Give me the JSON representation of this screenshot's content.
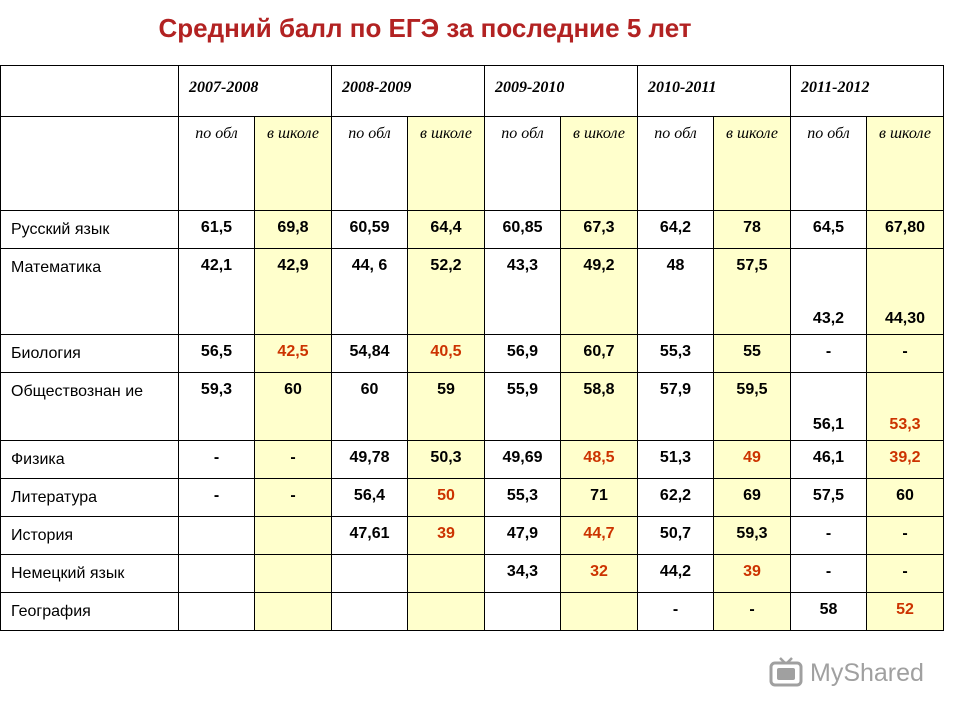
{
  "title": "Средний балл по ЕГЭ за последние 5 лет",
  "years": [
    "2007-2008",
    "2008-2009",
    "2009-2010",
    "2010-2011",
    "2011-2012"
  ],
  "sub_headers": [
    "по обл",
    "в школе"
  ],
  "rows": [
    {
      "subject": "Русский язык",
      "values": [
        "61,5",
        "69,8",
        "60,59",
        "64,4",
        "60,85",
        "67,3",
        "64,2",
        "78",
        "64,5",
        "67,80"
      ]
    },
    {
      "subject": "Математика",
      "values": [
        "42,1",
        "42,9",
        "44, 6",
        "52,2",
        "43,3",
        "49,2",
        "48",
        "57,5",
        "43,2",
        "44,30"
      ]
    },
    {
      "subject": "Биология",
      "values": [
        "56,5",
        "42,5",
        "54,84",
        "40,5",
        "56,9",
        "60,7",
        "55,3",
        "55",
        "-",
        "-"
      ]
    },
    {
      "subject": "Обществознан ие",
      "values": [
        "59,3",
        "60",
        "60",
        "59",
        "55,9",
        "58,8",
        "57,9",
        "59,5",
        "56,1",
        "53,3"
      ]
    },
    {
      "subject": "Физика",
      "values": [
        "-",
        "-",
        "49,78",
        "50,3",
        "49,69",
        "48,5",
        "51,3",
        "49",
        "46,1",
        "39,2"
      ]
    },
    {
      "subject": "Литература",
      "values": [
        "-",
        "-",
        "56,4",
        "50",
        "55,3",
        "71",
        "62,2",
        "69",
        "57,5",
        "60"
      ]
    },
    {
      "subject": "История",
      "values": [
        "",
        "",
        "47,61",
        "39",
        "47,9",
        "44,7",
        "50,7",
        "59,3",
        "-",
        "-"
      ]
    },
    {
      "subject": "Немецкий язык",
      "values": [
        "",
        "",
        "",
        "",
        "34,3",
        "32",
        "44,2",
        "39",
        "-",
        "-"
      ]
    },
    {
      "subject": "География",
      "values": [
        "",
        "",
        "",
        "",
        "",
        "",
        "-",
        "-",
        "58",
        "52"
      ]
    }
  ],
  "colors": {
    "title": "#b22222",
    "highlight_text": "#cc3300",
    "school_column_bg": "#ffffcc"
  },
  "watermark": {
    "text": "MyShared",
    "icon": "tv-icon"
  }
}
